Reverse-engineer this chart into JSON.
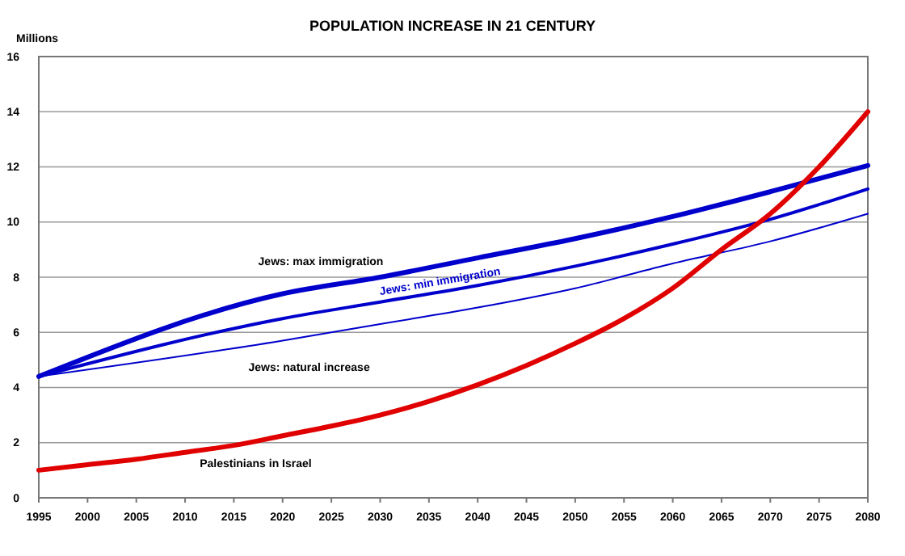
{
  "chart_data": {
    "type": "line",
    "title": "POPULATION INCREASE IN 21 CENTURY",
    "ylabel": "Millions",
    "x": [
      1995,
      2000,
      2005,
      2010,
      2015,
      2020,
      2025,
      2030,
      2035,
      2040,
      2045,
      2050,
      2055,
      2060,
      2065,
      2070,
      2075,
      2080
    ],
    "series": [
      {
        "name": "Jews: max immigration",
        "color": "#0000cc",
        "x": [
          1995,
          2020,
          2030,
          2040,
          2050,
          2060,
          2070,
          2080
        ],
        "values": [
          4.4,
          7.4,
          8.0,
          8.7,
          9.4,
          10.2,
          11.1,
          12.05
        ]
      },
      {
        "name": "Jews: min immigration",
        "color": "#0000cc",
        "x": [
          1995,
          2020,
          2030,
          2040,
          2050,
          2060,
          2070,
          2080
        ],
        "values": [
          4.4,
          6.5,
          7.1,
          7.7,
          8.4,
          9.2,
          10.1,
          11.2
        ]
      },
      {
        "name": "Jews: natural  increase",
        "color": "#0000cc",
        "x": [
          1995,
          2020,
          2030,
          2040,
          2050,
          2060,
          2070,
          2080
        ],
        "values": [
          4.4,
          5.7,
          6.3,
          6.9,
          7.6,
          8.5,
          9.3,
          10.3
        ]
      },
      {
        "name": "Palestinians in Israel",
        "color": "#e00000",
        "values": [
          1.0,
          1.2,
          1.4,
          1.65,
          1.9,
          2.25,
          2.6,
          3.0,
          3.5,
          4.1,
          4.8,
          5.6,
          6.5,
          7.6,
          9.0,
          10.3,
          12.0,
          14.0
        ]
      }
    ],
    "xlim": [
      1995,
      2080
    ],
    "xticks": [
      1995,
      2000,
      2005,
      2010,
      2015,
      2020,
      2025,
      2030,
      2035,
      2040,
      2045,
      2050,
      2055,
      2060,
      2065,
      2070,
      2075,
      2080
    ],
    "ylim": [
      0,
      16
    ],
    "yticks": [
      0,
      2,
      4,
      6,
      8,
      10,
      12,
      14,
      16
    ],
    "grid": "y",
    "legend": false,
    "marker": "none",
    "line_style": "solid"
  }
}
